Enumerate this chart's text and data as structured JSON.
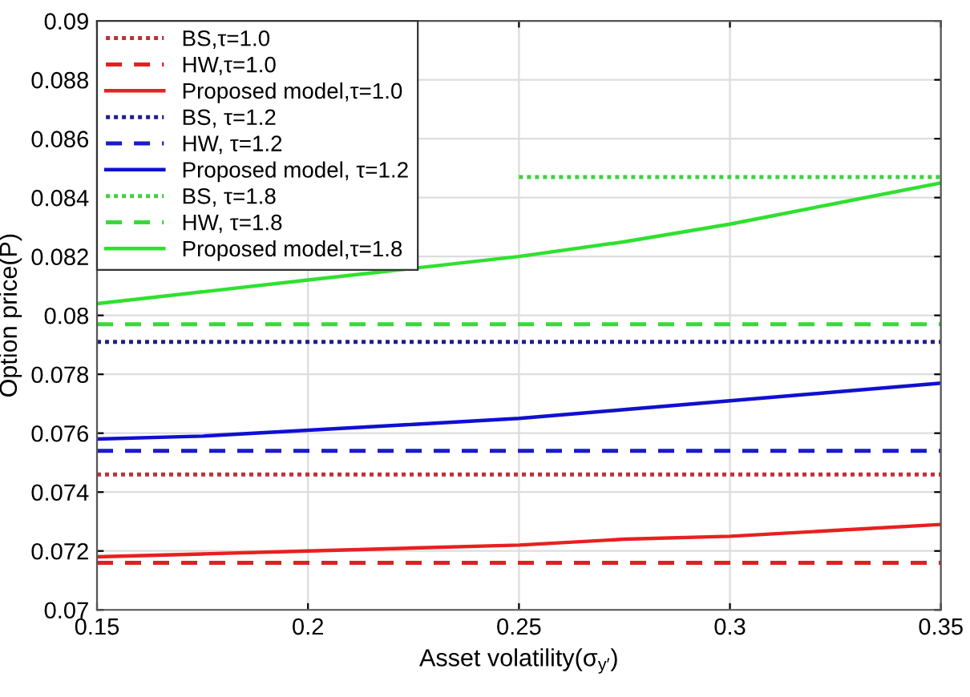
{
  "chart_data": {
    "type": "line",
    "xlabel": "Asset volatility(σ$_{y′}$)",
    "ylabel": "Option price(P)",
    "x": [
      0.15,
      0.175,
      0.2,
      0.225,
      0.25,
      0.275,
      0.3,
      0.325,
      0.35
    ],
    "xlim": [
      0.15,
      0.35
    ],
    "xticks": [
      0.15,
      0.2,
      0.25,
      0.3,
      0.35
    ],
    "ylim": [
      0.07,
      0.09
    ],
    "yticks": [
      0.07,
      0.072,
      0.074,
      0.076,
      0.078,
      0.08,
      0.082,
      0.084,
      0.086,
      0.088,
      0.09
    ],
    "grid": true,
    "legend": "top left",
    "marker": "none",
    "series": [
      {
        "name": "BS,τ=1.0",
        "color": "#c0303a",
        "line_style": "dotted",
        "values": [
          0.0746,
          0.0746,
          0.0746,
          0.0746,
          0.0746,
          0.0746,
          0.0746,
          0.0746,
          0.0746
        ]
      },
      {
        "name": "HW,τ=1.0",
        "color": "#e02020",
        "line_style": "dashed",
        "values": [
          0.0716,
          0.0716,
          0.0716,
          0.0716,
          0.0716,
          0.0716,
          0.0716,
          0.0716,
          0.0716
        ]
      },
      {
        "name": "Proposed model,τ=1.0",
        "color": "#e82020",
        "line_style": "solid",
        "values": [
          0.0718,
          0.0719,
          0.072,
          0.0721,
          0.0722,
          0.0724,
          0.0725,
          0.0727,
          0.0729
        ]
      },
      {
        "name": "BS, τ=1.2",
        "color": "#202090",
        "line_style": "dotted",
        "values": [
          0.0791,
          0.0791,
          0.0791,
          0.0791,
          0.0791,
          0.0791,
          0.0791,
          0.0791,
          0.0791
        ]
      },
      {
        "name": "HW, τ=1.2",
        "color": "#1a1ad0",
        "line_style": "dashed",
        "values": [
          0.0754,
          0.0754,
          0.0754,
          0.0754,
          0.0754,
          0.0754,
          0.0754,
          0.0754,
          0.0754
        ]
      },
      {
        "name": "Proposed model, τ=1.2",
        "color": "#1010d0",
        "line_style": "solid",
        "values": [
          0.0758,
          0.0759,
          0.0761,
          0.0763,
          0.0765,
          0.0768,
          0.0771,
          0.0774,
          0.0777
        ]
      },
      {
        "name": "BS, τ=1.8",
        "color": "#40d040",
        "line_style": "dotted",
        "values": [
          null,
          null,
          null,
          null,
          0.0847,
          0.0847,
          0.0847,
          0.0847,
          0.0847
        ]
      },
      {
        "name": "HW, τ=1.8",
        "color": "#3ad83a",
        "line_style": "dashed",
        "values": [
          0.0797,
          0.0797,
          0.0797,
          0.0797,
          0.0797,
          0.0797,
          0.0797,
          0.0797,
          0.0797
        ]
      },
      {
        "name": "Proposed model,τ=1.8",
        "color": "#30e030",
        "line_style": "solid",
        "values": [
          0.0804,
          0.0808,
          0.0812,
          0.0816,
          0.082,
          0.0825,
          0.0831,
          0.0838,
          0.0845
        ]
      }
    ]
  }
}
